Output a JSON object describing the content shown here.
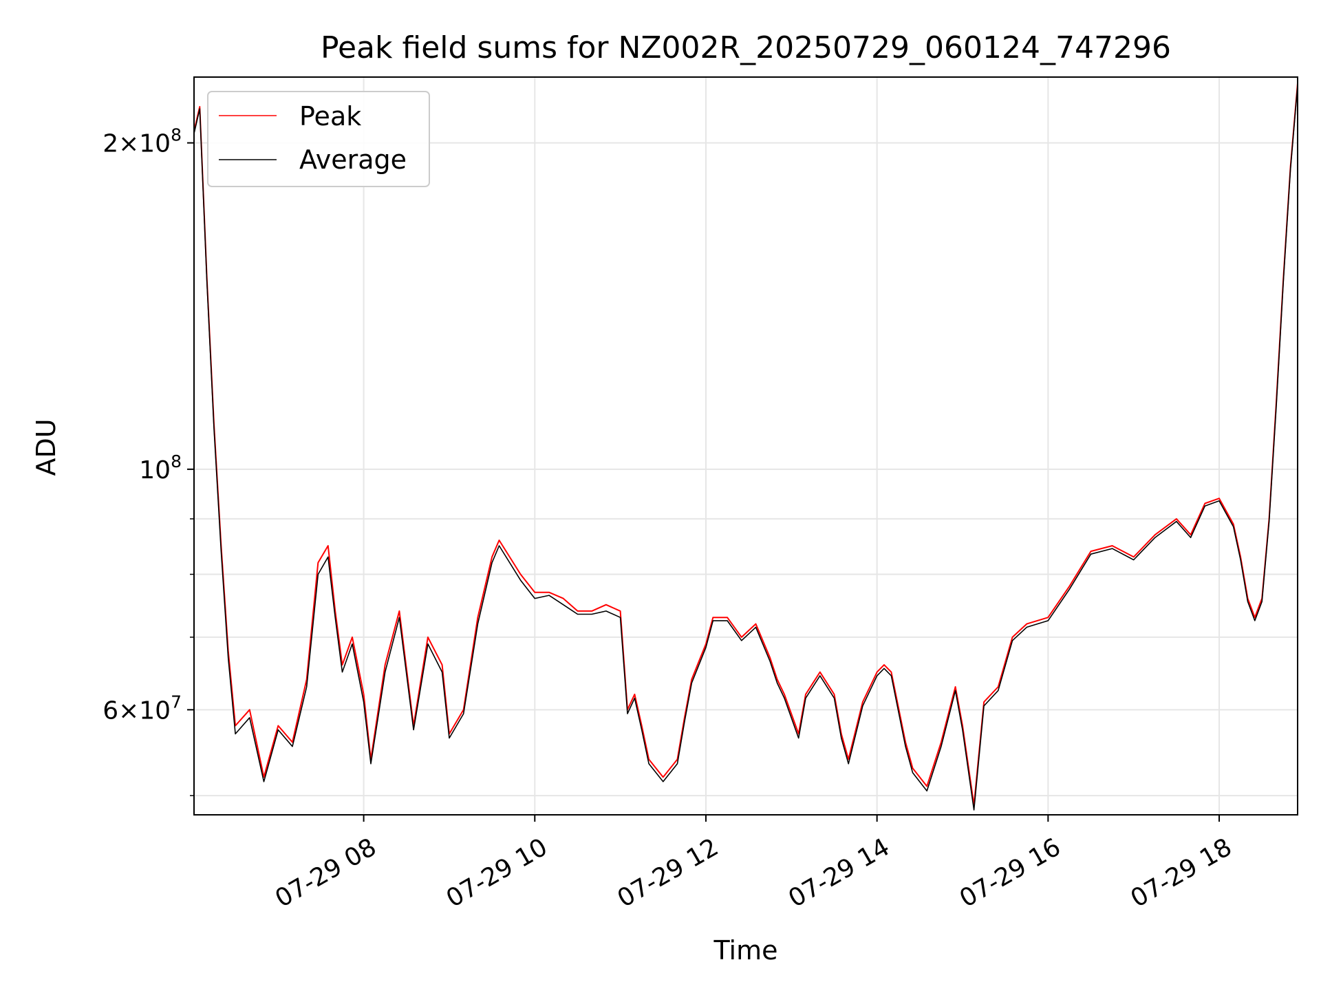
{
  "chart_data": {
    "type": "line",
    "title": "Peak field sums for NZ002R_20250729_060124_747296",
    "xlabel": "Time",
    "ylabel": "ADU",
    "yscale": "log",
    "grid": true,
    "legend_position": "top-left",
    "xlim": [
      "07-29 06:01",
      "07-29 18:55"
    ],
    "ylim": [
      48000000,
      230000000
    ],
    "x_ticks": [
      {
        "value": "07-29 08:00",
        "label": "07-29 08"
      },
      {
        "value": "07-29 10:00",
        "label": "07-29 10"
      },
      {
        "value": "07-29 12:00",
        "label": "07-29 12"
      },
      {
        "value": "07-29 14:00",
        "label": "07-29 14"
      },
      {
        "value": "07-29 16:00",
        "label": "07-29 16"
      },
      {
        "value": "07-29 18:00",
        "label": "07-29 18"
      }
    ],
    "y_major_ticks": [
      {
        "value": 60000000,
        "base": "6",
        "exp": "7"
      },
      {
        "value": 100000000,
        "base": "",
        "exp": "8"
      },
      {
        "value": 200000000,
        "base": "2",
        "exp": "8"
      }
    ],
    "y_minor_ticks": [
      50000000,
      70000000,
      80000000,
      90000000
    ],
    "x": [
      "07-29 06:01",
      "07-29 06:05",
      "07-29 06:10",
      "07-29 06:15",
      "07-29 06:20",
      "07-29 06:25",
      "07-29 06:30",
      "07-29 06:40",
      "07-29 06:50",
      "07-29 07:00",
      "07-29 07:10",
      "07-29 07:20",
      "07-29 07:28",
      "07-29 07:35",
      "07-29 07:40",
      "07-29 07:45",
      "07-29 07:52",
      "07-29 08:00",
      "07-29 08:05",
      "07-29 08:15",
      "07-29 08:25",
      "07-29 08:35",
      "07-29 08:45",
      "07-29 08:55",
      "07-29 09:00",
      "07-29 09:10",
      "07-29 09:20",
      "07-29 09:30",
      "07-29 09:35",
      "07-29 09:50",
      "07-29 10:00",
      "07-29 10:10",
      "07-29 10:20",
      "07-29 10:30",
      "07-29 10:40",
      "07-29 10:50",
      "07-29 11:00",
      "07-29 11:05",
      "07-29 11:10",
      "07-29 11:15",
      "07-29 11:20",
      "07-29 11:30",
      "07-29 11:40",
      "07-29 11:45",
      "07-29 11:50",
      "07-29 12:00",
      "07-29 12:05",
      "07-29 12:15",
      "07-29 12:25",
      "07-29 12:35",
      "07-29 12:45",
      "07-29 12:50",
      "07-29 12:55",
      "07-29 13:05",
      "07-29 13:10",
      "07-29 13:20",
      "07-29 13:30",
      "07-29 13:35",
      "07-29 13:40",
      "07-29 13:50",
      "07-29 14:00",
      "07-29 14:05",
      "07-29 14:10",
      "07-29 14:20",
      "07-29 14:25",
      "07-29 14:35",
      "07-29 14:45",
      "07-29 14:55",
      "07-29 15:00",
      "07-29 15:08",
      "07-29 15:15",
      "07-29 15:25",
      "07-29 15:35",
      "07-29 15:45",
      "07-29 16:00",
      "07-29 16:15",
      "07-29 16:30",
      "07-29 16:45",
      "07-29 17:00",
      "07-29 17:15",
      "07-29 17:30",
      "07-29 17:40",
      "07-29 17:50",
      "07-29 18:00",
      "07-29 18:10",
      "07-29 18:15",
      "07-29 18:20",
      "07-29 18:25",
      "07-29 18:30",
      "07-29 18:35",
      "07-29 18:40",
      "07-29 18:45",
      "07-29 18:50",
      "07-29 18:55"
    ],
    "series": [
      {
        "name": "Peak",
        "color": "#ff0000",
        "values": [
          205000000,
          216000000,
          150000000,
          110000000,
          85000000,
          68000000,
          58000000,
          60000000,
          52000000,
          58000000,
          56000000,
          64000000,
          82000000,
          85000000,
          74000000,
          66000000,
          70000000,
          62000000,
          54000000,
          66000000,
          74000000,
          58000000,
          70000000,
          66000000,
          57000000,
          60000000,
          73000000,
          83000000,
          86000000,
          80000000,
          77000000,
          77000000,
          76000000,
          74000000,
          74000000,
          75000000,
          74000000,
          60000000,
          62000000,
          58000000,
          54000000,
          52000000,
          54000000,
          59000000,
          64000000,
          69000000,
          73000000,
          73000000,
          70000000,
          72000000,
          67000000,
          64000000,
          62000000,
          57000000,
          62000000,
          65000000,
          62000000,
          57000000,
          54000000,
          61000000,
          65000000,
          66000000,
          65000000,
          56000000,
          53000000,
          51000000,
          56000000,
          63000000,
          58000000,
          49000000,
          61000000,
          63000000,
          70000000,
          72000000,
          73000000,
          78000000,
          84000000,
          85000000,
          83000000,
          87000000,
          90000000,
          87000000,
          93000000,
          94000000,
          89000000,
          83000000,
          76000000,
          73000000,
          76000000,
          90000000,
          115000000,
          150000000,
          190000000,
          227000000
        ]
      },
      {
        "name": "Average",
        "color": "#000000",
        "values": [
          204000000,
          215000000,
          149000000,
          109000000,
          84000000,
          67000000,
          57000000,
          59000000,
          51500000,
          57500000,
          55500000,
          63000000,
          80000000,
          83000000,
          73000000,
          65000000,
          69000000,
          61000000,
          53500000,
          65000000,
          73000000,
          57500000,
          69000000,
          65000000,
          56500000,
          59500000,
          72000000,
          82000000,
          85000000,
          79000000,
          76000000,
          76500000,
          75000000,
          73500000,
          73500000,
          74000000,
          73000000,
          59500000,
          61500000,
          57500000,
          53500000,
          51500000,
          53500000,
          58500000,
          63500000,
          68500000,
          72500000,
          72500000,
          69500000,
          71500000,
          66500000,
          63500000,
          61500000,
          56500000,
          61500000,
          64500000,
          61500000,
          56500000,
          53500000,
          60500000,
          64500000,
          65500000,
          64500000,
          55500000,
          52500000,
          50500000,
          55500000,
          62500000,
          57500000,
          48500000,
          60500000,
          62500000,
          69500000,
          71500000,
          72500000,
          77500000,
          83500000,
          84500000,
          82500000,
          86500000,
          89500000,
          86500000,
          92500000,
          93500000,
          88500000,
          82500000,
          75500000,
          72500000,
          75500000,
          89500000,
          114000000,
          149000000,
          189000000,
          226000000
        ]
      }
    ]
  }
}
